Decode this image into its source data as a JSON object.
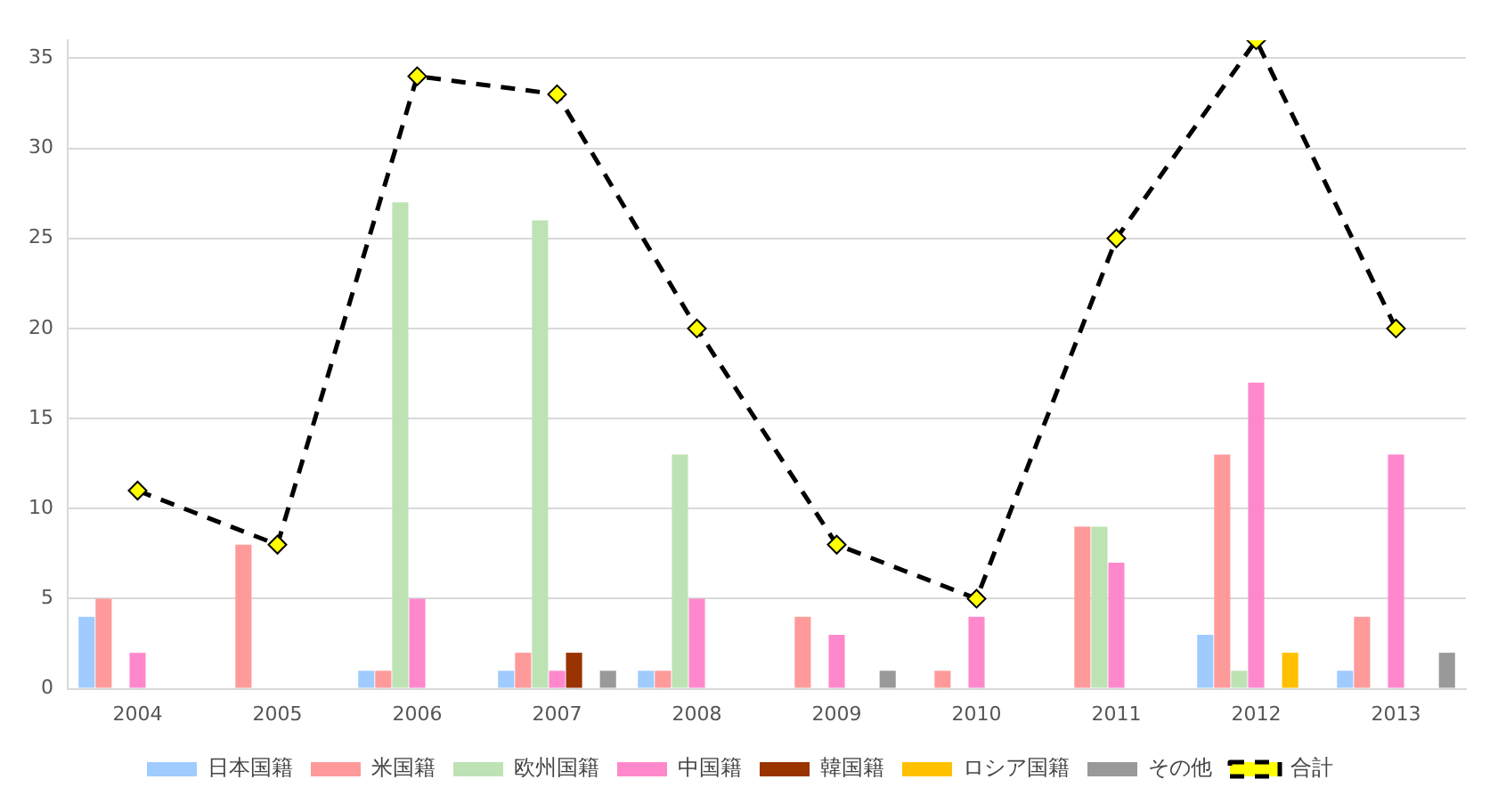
{
  "chart_data": {
    "type": "bar",
    "categories": [
      "2004",
      "2005",
      "2006",
      "2007",
      "2008",
      "2009",
      "2010",
      "2011",
      "2012",
      "2013"
    ],
    "series": [
      {
        "name": "日本国籍",
        "color": "#9fcbff",
        "values": [
          4,
          0,
          1,
          1,
          1,
          0,
          0,
          0,
          3,
          1
        ]
      },
      {
        "name": "米国籍",
        "color": "#ff9a9a",
        "values": [
          5,
          8,
          1,
          2,
          1,
          4,
          1,
          9,
          13,
          4
        ]
      },
      {
        "name": "欧州国籍",
        "color": "#bde3b4",
        "values": [
          0,
          0,
          27,
          26,
          13,
          0,
          0,
          9,
          1,
          0
        ]
      },
      {
        "name": "中国籍",
        "color": "#ff88cc",
        "values": [
          2,
          0,
          5,
          1,
          5,
          3,
          4,
          7,
          17,
          13
        ]
      },
      {
        "name": "韓国籍",
        "color": "#993300",
        "values": [
          0,
          0,
          0,
          2,
          0,
          0,
          0,
          0,
          0,
          0
        ]
      },
      {
        "name": "ロシア国籍",
        "color": "#ffc000",
        "values": [
          0,
          0,
          0,
          0,
          0,
          0,
          0,
          0,
          2,
          0
        ]
      },
      {
        "name": "その他",
        "color": "#999999",
        "values": [
          0,
          0,
          0,
          1,
          0,
          1,
          0,
          0,
          0,
          2
        ]
      },
      {
        "name": "合計",
        "type": "line",
        "color": "#000000",
        "line_style": "dashed",
        "marker": "diamond",
        "values": [
          11,
          8,
          34,
          33,
          20,
          8,
          5,
          25,
          36,
          20
        ]
      }
    ],
    "ylim": [
      0,
      36
    ],
    "yticks": [
      0,
      5,
      10,
      15,
      20,
      25,
      30,
      35
    ],
    "grid": "y",
    "legend": "bottom"
  }
}
